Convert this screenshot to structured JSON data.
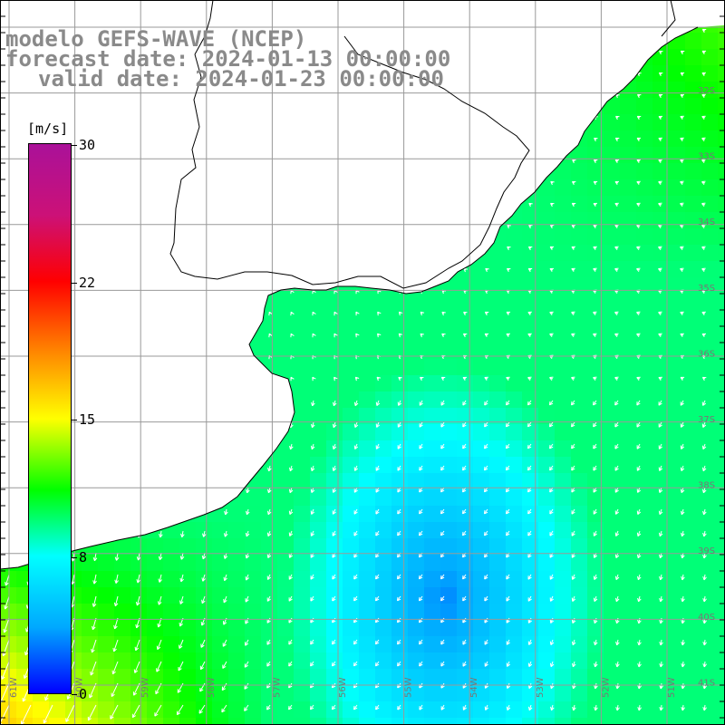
{
  "title": {
    "line1": "modelo GEFS-WAVE (NCEP)",
    "line2": "forecast date: 2024-01-13 00:00:00",
    "line3": "valid date: 2024-01-23 00:00:00"
  },
  "colorbar": {
    "unit": "[m/s]",
    "min": 0,
    "max": 30,
    "ticks": [
      "30",
      "22",
      "15",
      "8",
      "0"
    ],
    "tick_values": [
      30,
      22.5,
      15,
      7.5,
      0
    ],
    "stops": [
      "#0000ff",
      "#00a8ff",
      "#00ffff",
      "#00ff00",
      "#ffff00",
      "#ff8800",
      "#ff0000",
      "#cc1177",
      "#aa1199"
    ]
  },
  "map": {
    "lon_labels": [
      "61W",
      "60W",
      "59W",
      "58W",
      "57W",
      "56W",
      "55W",
      "54W",
      "53W",
      "52W",
      "51W"
    ],
    "lat_labels": [
      "32S",
      "33S",
      "34S",
      "35S",
      "36S",
      "37S",
      "38S",
      "39S",
      "40S",
      "41S"
    ],
    "land_color": "#ffffff",
    "grid_color": "#999999",
    "arrow_color": "#ffffff"
  }
}
